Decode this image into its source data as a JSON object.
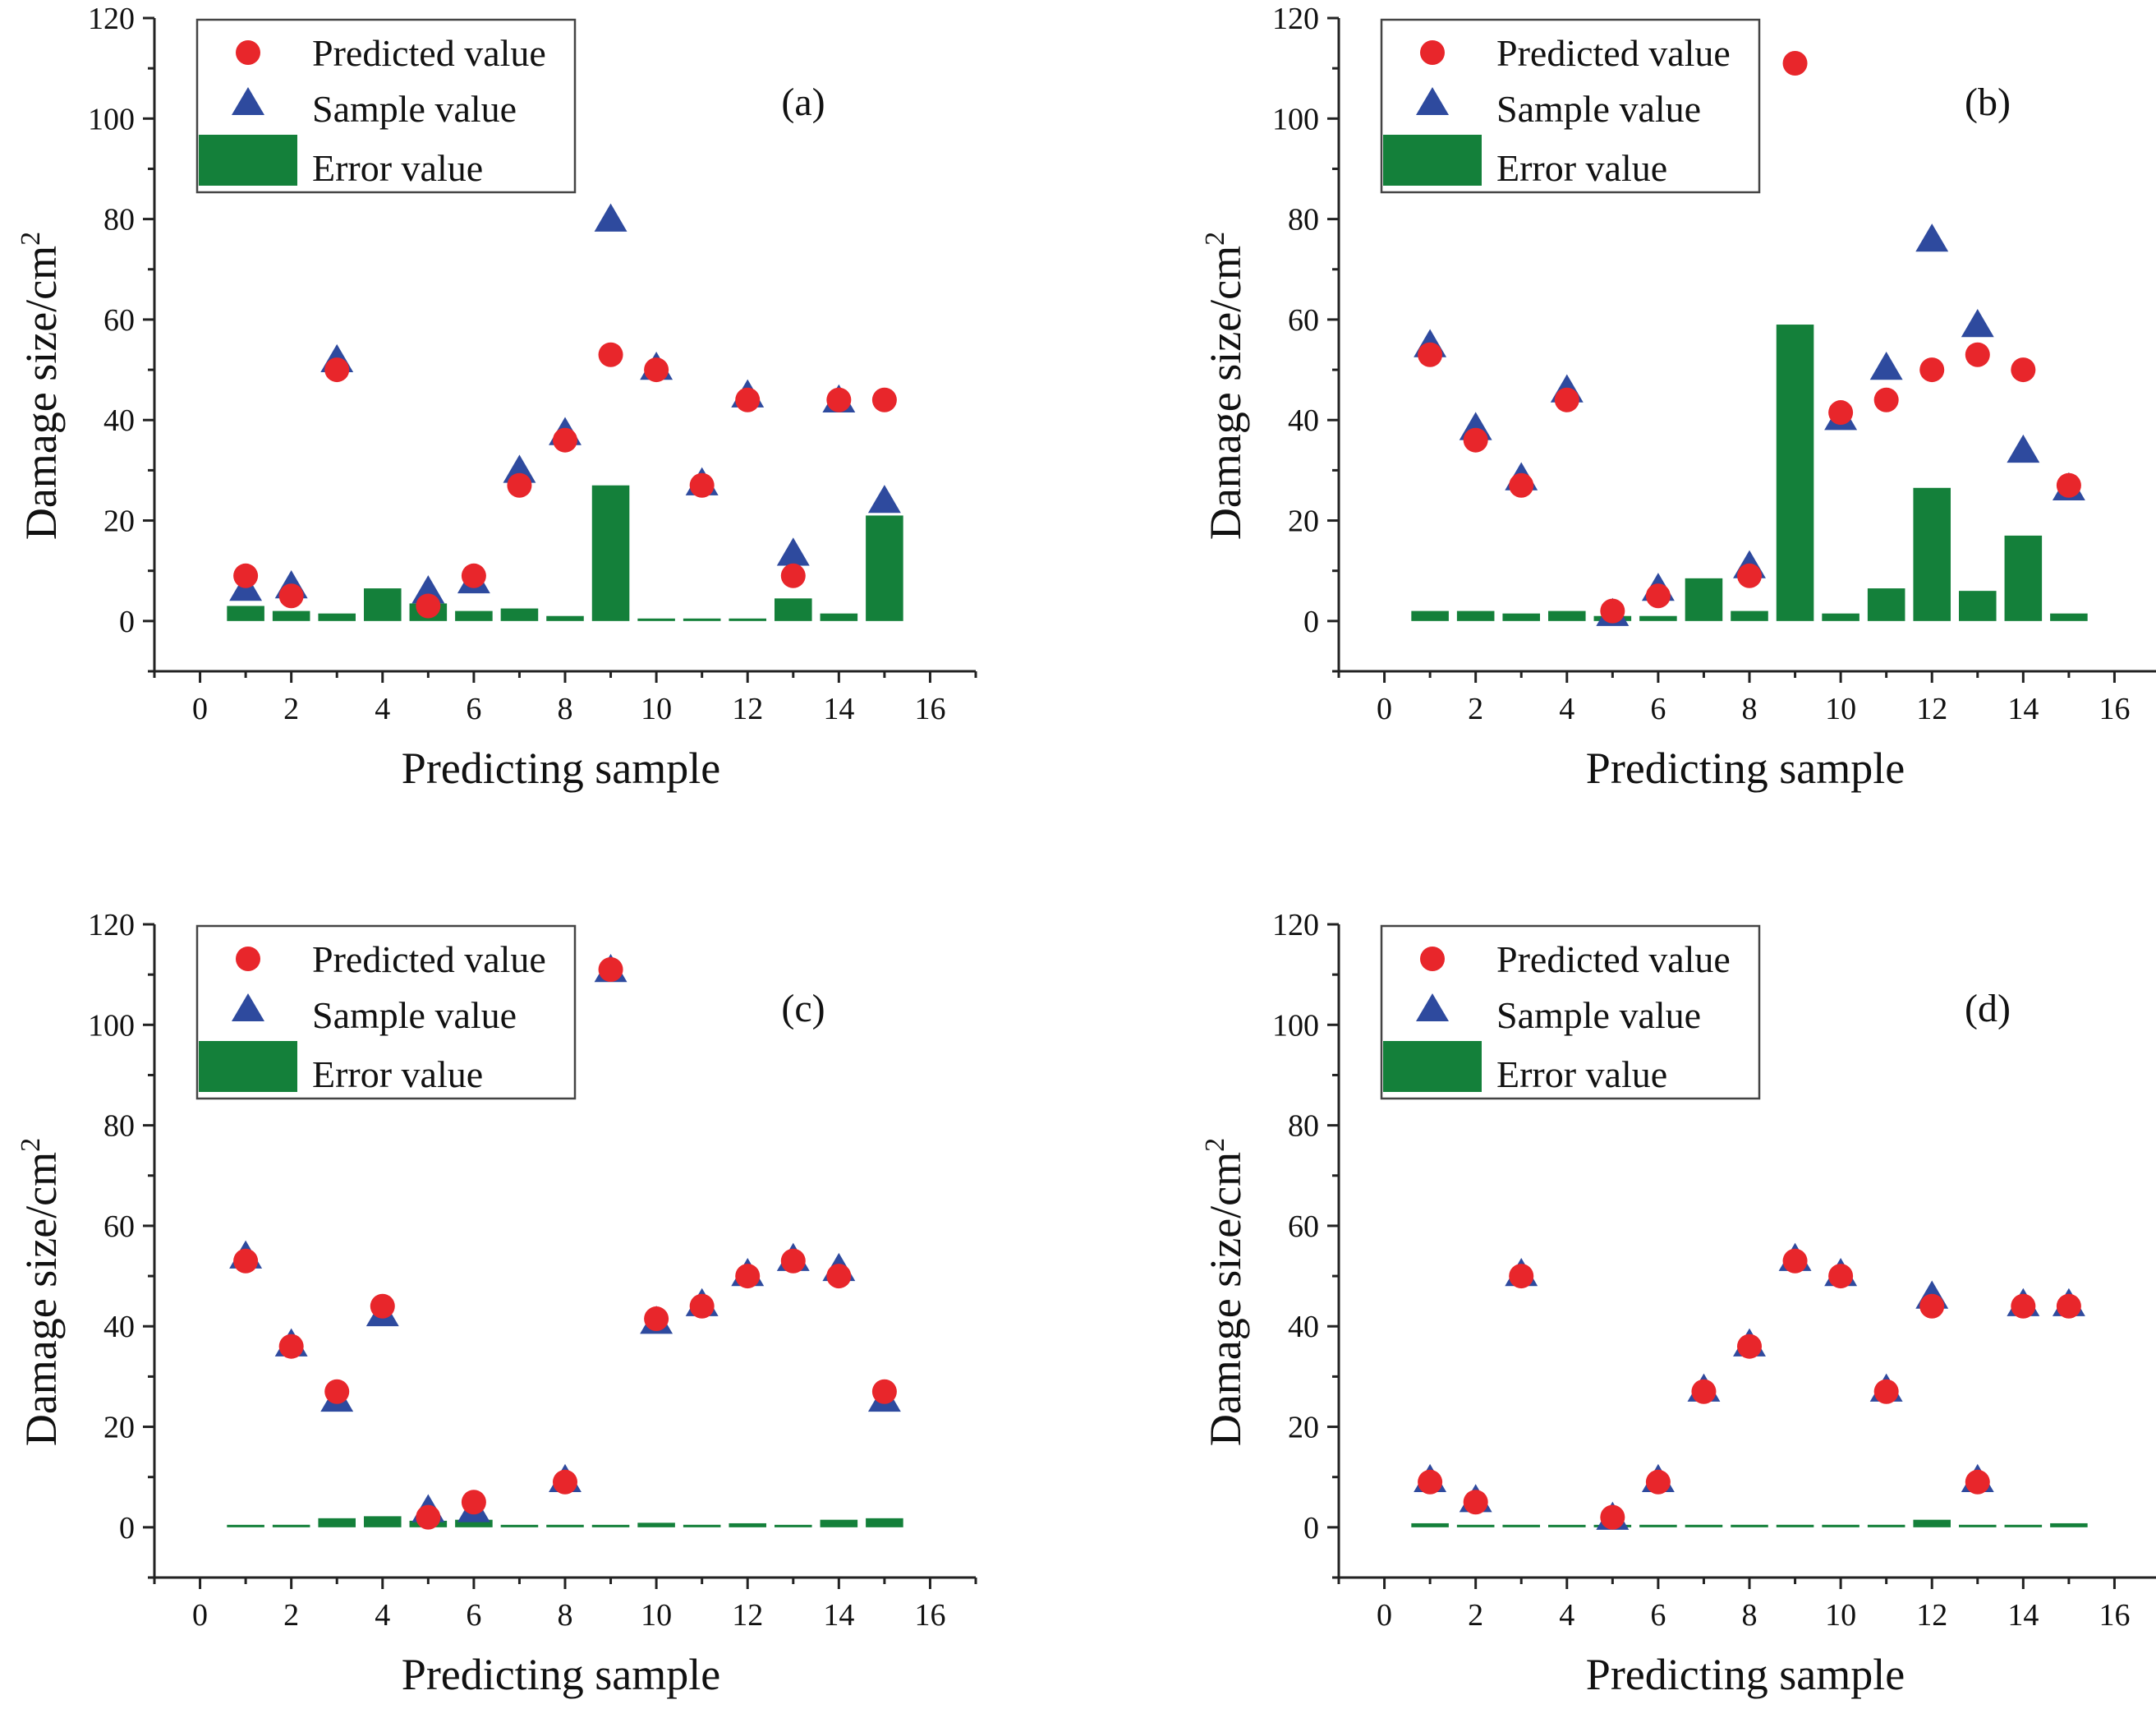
{
  "colors": {
    "predicted": "#E8262B",
    "sample": "#2E4A9E",
    "error": "#14803A"
  },
  "chart_data": [
    {
      "type": "scatter+bar",
      "panel": "(a)",
      "xlabel": "Predicting sample",
      "ylabel": "Damage size/cm",
      "ylabel_sup": "2",
      "xlim": [
        -1,
        17
      ],
      "ylim": [
        -10,
        120
      ],
      "xticks": [
        0,
        2,
        4,
        6,
        8,
        10,
        12,
        14,
        16
      ],
      "yticks": [
        0,
        20,
        40,
        60,
        80,
        100,
        120
      ],
      "legend": [
        "Predicted value",
        "Sample value",
        "Error value"
      ],
      "x": [
        1,
        2,
        3,
        4,
        5,
        6,
        7,
        8,
        9,
        10,
        11,
        12,
        13,
        14,
        15
      ],
      "series": [
        {
          "name": "Predicted value",
          "values": [
            9,
            5,
            50,
            null,
            3,
            9,
            27,
            36,
            53,
            50,
            27,
            44,
            9,
            44,
            44
          ]
        },
        {
          "name": "Sample value",
          "values": [
            6.5,
            7,
            52,
            null,
            6,
            8,
            30,
            37.5,
            80,
            50.5,
            27.5,
            45,
            13.5,
            44,
            24
          ]
        },
        {
          "name": "Error value",
          "values": [
            3,
            2,
            1.5,
            6.5,
            3.5,
            2,
            2.5,
            1,
            27,
            0.5,
            0.5,
            0.5,
            4.5,
            1.5,
            21
          ]
        }
      ]
    },
    {
      "type": "scatter+bar",
      "panel": "(b)",
      "xlabel": "Predicting sample",
      "ylabel": "Damage size/cm",
      "ylabel_sup": "2",
      "xlim": [
        -1,
        17
      ],
      "ylim": [
        -10,
        120
      ],
      "xticks": [
        0,
        2,
        4,
        6,
        8,
        10,
        12,
        14,
        16
      ],
      "yticks": [
        0,
        20,
        40,
        60,
        80,
        100,
        120
      ],
      "legend": [
        "Predicted value",
        "Sample value",
        "Error value"
      ],
      "x": [
        1,
        2,
        3,
        4,
        5,
        6,
        7,
        8,
        9,
        10,
        11,
        12,
        13,
        14,
        15
      ],
      "series": [
        {
          "name": "Predicted value",
          "values": [
            53,
            36,
            27,
            44,
            2,
            5,
            null,
            9,
            111,
            41.5,
            44,
            50,
            53,
            50,
            27
          ]
        },
        {
          "name": "Sample value",
          "values": [
            55,
            38.5,
            28.5,
            46,
            1.5,
            6.5,
            null,
            11,
            null,
            40.5,
            50.5,
            76,
            59,
            34,
            26.5
          ]
        },
        {
          "name": "Error value",
          "values": [
            2,
            2,
            1.5,
            2,
            1,
            1,
            8.5,
            2,
            59,
            1.5,
            6.5,
            26.5,
            6,
            17,
            1.5
          ]
        }
      ]
    },
    {
      "type": "scatter+bar",
      "panel": "(c)",
      "xlabel": "Predicting sample",
      "ylabel": "Damage size/cm",
      "ylabel_sup": "2",
      "xlim": [
        -1,
        17
      ],
      "ylim": [
        -10,
        120
      ],
      "xticks": [
        0,
        2,
        4,
        6,
        8,
        10,
        12,
        14,
        16
      ],
      "yticks": [
        0,
        20,
        40,
        60,
        80,
        100,
        120
      ],
      "legend": [
        "Predicted value",
        "Sample value",
        "Error value"
      ],
      "x": [
        1,
        2,
        3,
        4,
        5,
        6,
        7,
        8,
        9,
        10,
        11,
        12,
        13,
        14,
        15
      ],
      "series": [
        {
          "name": "Predicted value",
          "values": [
            53,
            36,
            27,
            44,
            2,
            5,
            null,
            9,
            111,
            41.5,
            44,
            50,
            53,
            50,
            27
          ]
        },
        {
          "name": "Sample value",
          "values": [
            54,
            36.5,
            25.5,
            42.5,
            3.5,
            3.5,
            null,
            9.5,
            111,
            41,
            44.5,
            50.5,
            53.5,
            51.5,
            25.5
          ]
        },
        {
          "name": "Error value",
          "values": [
            0.3,
            0.5,
            1.8,
            2.2,
            1.3,
            1.5,
            0.3,
            0.5,
            0.3,
            0.9,
            0.5,
            0.8,
            0.3,
            1.5,
            1.8
          ]
        }
      ]
    },
    {
      "type": "scatter+bar",
      "panel": "(d)",
      "xlabel": "Predicting sample",
      "ylabel": "Damage size/cm",
      "ylabel_sup": "2",
      "xlim": [
        -1,
        17
      ],
      "ylim": [
        -10,
        120
      ],
      "xticks": [
        0,
        2,
        4,
        6,
        8,
        10,
        12,
        14,
        16
      ],
      "yticks": [
        0,
        20,
        40,
        60,
        80,
        100,
        120
      ],
      "legend": [
        "Predicted value",
        "Sample value",
        "Error value"
      ],
      "x": [
        1,
        2,
        3,
        4,
        5,
        6,
        7,
        8,
        9,
        10,
        11,
        12,
        13,
        14,
        15
      ],
      "series": [
        {
          "name": "Predicted value",
          "values": [
            9,
            5,
            50,
            null,
            2,
            9,
            27,
            36,
            53,
            50,
            27,
            44,
            9,
            44,
            44
          ]
        },
        {
          "name": "Sample value",
          "values": [
            9.5,
            5.5,
            50.5,
            null,
            2,
            9.5,
            27.5,
            36.5,
            53.5,
            50.5,
            27.5,
            46,
            9.5,
            44.5,
            44.5
          ]
        },
        {
          "name": "Error value",
          "values": [
            0.8,
            0.5,
            0.5,
            0.3,
            0.3,
            0.5,
            0.5,
            0.5,
            0.5,
            0.5,
            0.5,
            1.5,
            0.5,
            0.5,
            0.8
          ]
        }
      ]
    }
  ]
}
